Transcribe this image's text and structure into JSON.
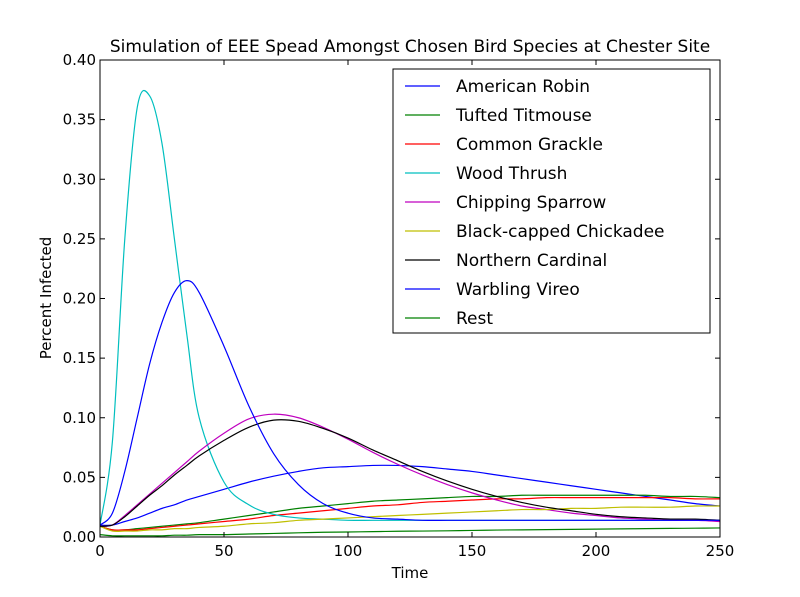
{
  "chart_data": {
    "type": "line",
    "title": "Simulation of EEE Spead Amongst Chosen Bird Species at Chester Site",
    "xlabel": "Time",
    "ylabel": "Percent Infected",
    "xlim": [
      0,
      250
    ],
    "ylim": [
      0,
      0.4
    ],
    "xticks": [
      "0",
      "50",
      "100",
      "150",
      "200",
      "250"
    ],
    "yticks": [
      "0.00",
      "0.05",
      "0.10",
      "0.15",
      "0.20",
      "0.25",
      "0.30",
      "0.35",
      "0.40"
    ],
    "grid": false,
    "legend_position": "top-right",
    "x": [
      0,
      5,
      10,
      15,
      20,
      25,
      30,
      35,
      40,
      50,
      60,
      70,
      80,
      90,
      100,
      110,
      120,
      130,
      140,
      150,
      160,
      170,
      180,
      190,
      200,
      210,
      220,
      230,
      240,
      250
    ],
    "series": [
      {
        "name": "American Robin",
        "color": "#0000ff",
        "values": [
          0.01,
          0.01,
          0.013,
          0.016,
          0.02,
          0.024,
          0.027,
          0.031,
          0.034,
          0.04,
          0.046,
          0.051,
          0.055,
          0.058,
          0.059,
          0.06,
          0.06,
          0.059,
          0.057,
          0.055,
          0.052,
          0.049,
          0.046,
          0.043,
          0.04,
          0.037,
          0.034,
          0.031,
          0.028,
          0.026
        ]
      },
      {
        "name": "Tufted Titmouse",
        "color": "#008000",
        "values": [
          0.009,
          0.006,
          0.006,
          0.007,
          0.008,
          0.009,
          0.01,
          0.011,
          0.012,
          0.015,
          0.018,
          0.021,
          0.024,
          0.026,
          0.028,
          0.03,
          0.031,
          0.032,
          0.033,
          0.034,
          0.034,
          0.035,
          0.035,
          0.035,
          0.035,
          0.035,
          0.035,
          0.034,
          0.034,
          0.033
        ]
      },
      {
        "name": "Common Grackle",
        "color": "#ff0000",
        "values": [
          0.009,
          0.006,
          0.006,
          0.006,
          0.007,
          0.008,
          0.009,
          0.01,
          0.011,
          0.013,
          0.015,
          0.018,
          0.02,
          0.022,
          0.024,
          0.026,
          0.027,
          0.029,
          0.03,
          0.031,
          0.032,
          0.032,
          0.033,
          0.033,
          0.033,
          0.033,
          0.033,
          0.033,
          0.032,
          0.032
        ]
      },
      {
        "name": "Wood Thrush",
        "color": "#00bfbf",
        "values": [
          0.01,
          0.08,
          0.25,
          0.36,
          0.37,
          0.33,
          0.25,
          0.17,
          0.1,
          0.046,
          0.027,
          0.019,
          0.016,
          0.015,
          0.014,
          0.014,
          0.014,
          0.014,
          0.014,
          0.014,
          0.014,
          0.014,
          0.014,
          0.014,
          0.014,
          0.014,
          0.014,
          0.014,
          0.014,
          0.014
        ]
      },
      {
        "name": "Chipping Sparrow",
        "color": "#bf00bf",
        "values": [
          0.009,
          0.01,
          0.018,
          0.027,
          0.036,
          0.045,
          0.054,
          0.063,
          0.072,
          0.087,
          0.099,
          0.103,
          0.1,
          0.092,
          0.082,
          0.071,
          0.061,
          0.052,
          0.044,
          0.037,
          0.031,
          0.026,
          0.023,
          0.02,
          0.018,
          0.016,
          0.015,
          0.014,
          0.014,
          0.013
        ]
      },
      {
        "name": "Black-capped Chickadee",
        "color": "#bfbf00",
        "values": [
          0.009,
          0.005,
          0.005,
          0.005,
          0.006,
          0.006,
          0.007,
          0.007,
          0.008,
          0.009,
          0.011,
          0.012,
          0.014,
          0.015,
          0.016,
          0.017,
          0.018,
          0.019,
          0.02,
          0.021,
          0.022,
          0.023,
          0.023,
          0.024,
          0.024,
          0.025,
          0.025,
          0.025,
          0.026,
          0.026
        ]
      },
      {
        "name": "Northern Cardinal",
        "color": "#000000",
        "values": [
          0.009,
          0.01,
          0.017,
          0.026,
          0.035,
          0.043,
          0.052,
          0.06,
          0.068,
          0.081,
          0.092,
          0.098,
          0.097,
          0.091,
          0.083,
          0.073,
          0.064,
          0.055,
          0.047,
          0.04,
          0.034,
          0.029,
          0.025,
          0.022,
          0.019,
          0.017,
          0.016,
          0.015,
          0.015,
          0.014
        ]
      },
      {
        "name": "Warbling Vireo",
        "color": "#0000ff",
        "values": [
          0.01,
          0.02,
          0.055,
          0.1,
          0.145,
          0.18,
          0.205,
          0.215,
          0.205,
          0.16,
          0.11,
          0.07,
          0.044,
          0.028,
          0.02,
          0.016,
          0.015,
          0.014,
          0.014,
          0.014,
          0.014,
          0.014,
          0.014,
          0.014,
          0.014,
          0.014,
          0.014,
          0.014,
          0.014,
          0.014
        ]
      },
      {
        "name": "Rest",
        "color": "#008000",
        "values": [
          0.002,
          0.001,
          0.001,
          0.001,
          0.001,
          0.001,
          0.0015,
          0.0015,
          0.002,
          0.002,
          0.0025,
          0.003,
          0.0035,
          0.004,
          0.0042,
          0.0045,
          0.0048,
          0.005,
          0.0052,
          0.0055,
          0.0058,
          0.006,
          0.0062,
          0.0064,
          0.0066,
          0.0068,
          0.007,
          0.0072,
          0.0074,
          0.0076
        ]
      }
    ]
  }
}
